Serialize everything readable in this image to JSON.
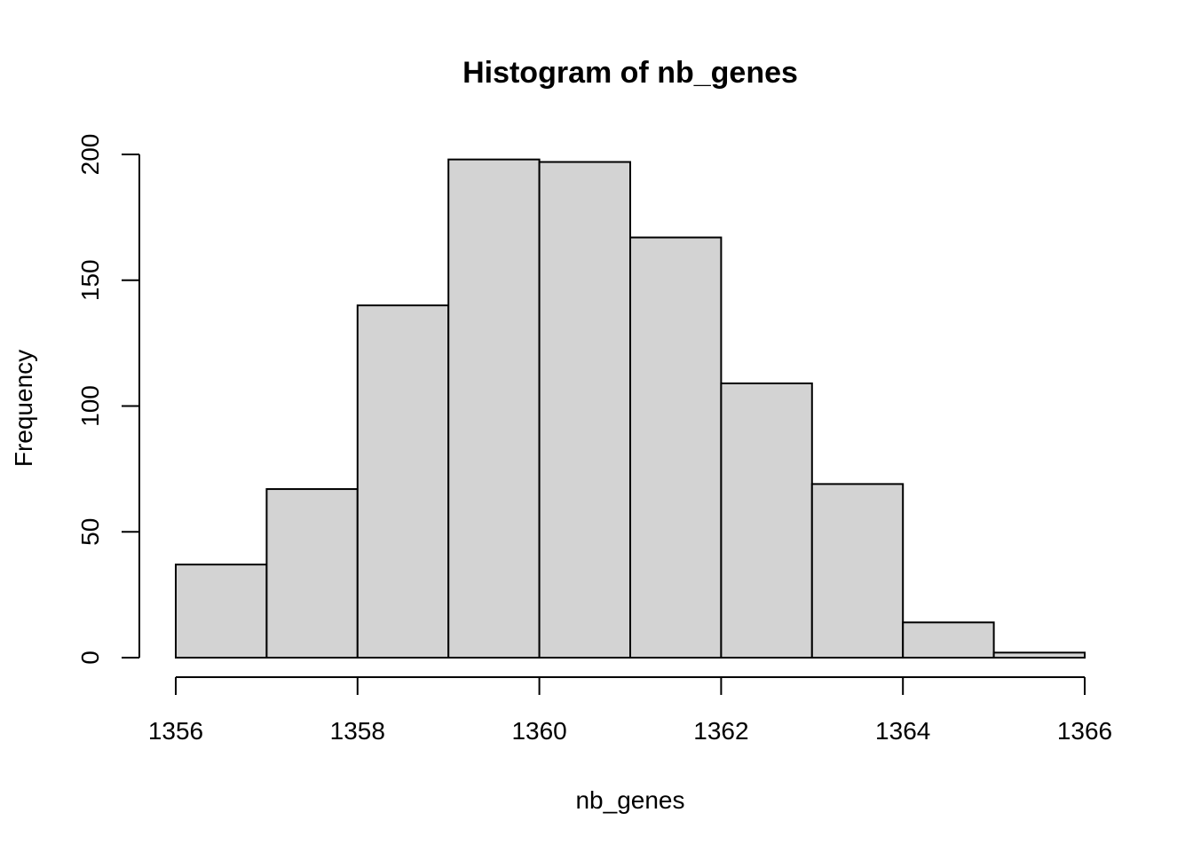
{
  "chart_data": {
    "type": "bar",
    "title": "Histogram of nb_genes",
    "xlabel": "nb_genes",
    "ylabel": "Frequency",
    "bin_edges": [
      1356,
      1357,
      1358,
      1359,
      1360,
      1361,
      1362,
      1363,
      1364,
      1365,
      1366
    ],
    "values": [
      37,
      67,
      140,
      198,
      197,
      167,
      109,
      69,
      14,
      2
    ],
    "x_ticks": [
      "1356",
      "1358",
      "1360",
      "1362",
      "1364",
      "1366"
    ],
    "y_ticks": [
      "0",
      "50",
      "100",
      "150",
      "200"
    ],
    "xlim": [
      1356,
      1366
    ],
    "ylim": [
      0,
      200
    ],
    "bar_fill": "#d3d3d3",
    "bar_stroke": "#000000",
    "grid": false,
    "legend": "none"
  }
}
